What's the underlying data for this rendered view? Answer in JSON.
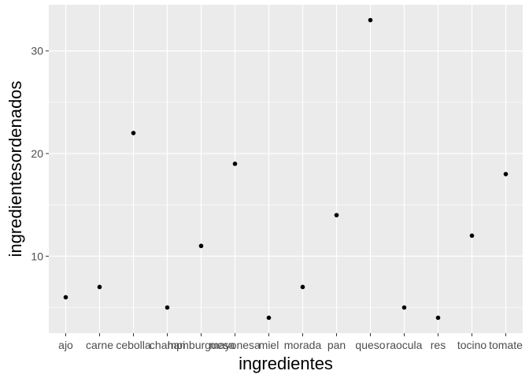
{
  "chart_data": {
    "type": "scatter",
    "title": "",
    "xlabel": "ingredientes",
    "ylabel": "ingredientesordenados",
    "categories": [
      "ajo",
      "carne",
      "cebolla",
      "champi",
      "hamburguesa",
      "mayonesa",
      "miel",
      "morada",
      "pan",
      "queso",
      "raocula",
      "res",
      "tocino",
      "tomate"
    ],
    "values": [
      6,
      7,
      22,
      5,
      11,
      19,
      4,
      7,
      14,
      33,
      5,
      4,
      12,
      18
    ],
    "ylim": [
      2.5,
      34.5
    ],
    "yticks": [
      10,
      20,
      30
    ],
    "grid": true,
    "legend": "none"
  },
  "colors": {
    "panel": "#ebebeb",
    "grid_major": "#ffffff",
    "point": "#000000",
    "tick": "#333333"
  }
}
